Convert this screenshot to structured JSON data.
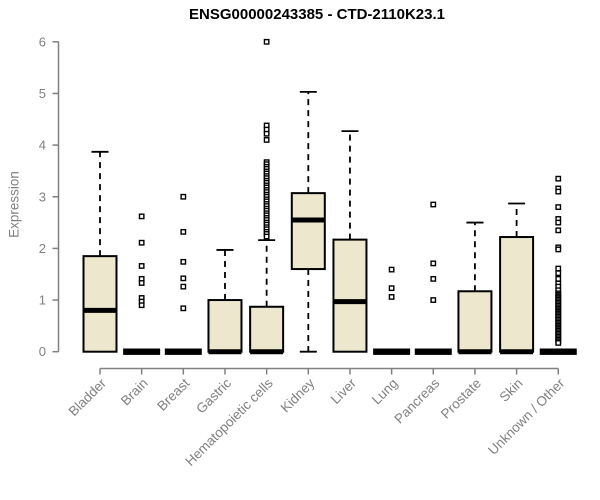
{
  "chart_data": {
    "type": "boxplot",
    "title": "ENSG00000243385 - CTD-2110K23.1",
    "xlabel": "",
    "ylabel": "Expression",
    "ylim": [
      0,
      6
    ],
    "yticks": [
      0,
      1,
      2,
      3,
      4,
      5,
      6
    ],
    "grid": false,
    "legend": null,
    "whisker_style": "dashed",
    "outlier_shape": "open-square",
    "categories": [
      "Bladder",
      "Brain",
      "Breast",
      "Gastric",
      "Hematopoietic cells",
      "Kidney",
      "Liver",
      "Lung",
      "Pancreas",
      "Prostate",
      "Skin",
      "Unknown / Other"
    ],
    "boxes": [
      {
        "category": "Bladder",
        "whisker_low": 0,
        "q1": 0,
        "median": 0.8,
        "q3": 1.85,
        "whisker_high": 3.87,
        "outliers": []
      },
      {
        "category": "Brain",
        "whisker_low": 0,
        "q1": 0,
        "median": 0,
        "q3": 0,
        "whisker_high": 0,
        "outliers": [
          2.62,
          2.11,
          1.66,
          1.41,
          1.33,
          1.04,
          0.97,
          0.9
        ]
      },
      {
        "category": "Breast",
        "whisker_low": 0,
        "q1": 0,
        "median": 0,
        "q3": 0,
        "whisker_high": 0,
        "outliers": [
          3.0,
          2.32,
          1.74,
          1.42,
          1.26,
          0.84
        ]
      },
      {
        "category": "Gastric",
        "whisker_low": 0,
        "q1": 0,
        "median": 0,
        "q3": 1.0,
        "whisker_high": 1.97,
        "outliers": []
      },
      {
        "category": "Hematopoietic cells",
        "whisker_low": 0,
        "q1": 0,
        "median": 0,
        "q3": 0.87,
        "whisker_high": 2.16,
        "outliers": [
          6.0,
          4.38,
          4.3,
          4.22,
          4.1,
          3.67,
          3.63,
          3.58,
          3.54,
          3.49,
          3.45,
          3.4,
          3.36,
          3.31,
          3.27,
          3.22,
          3.18,
          3.13,
          3.09,
          3.04,
          3.0,
          2.95,
          2.91,
          2.86,
          2.82,
          2.77,
          2.73,
          2.68,
          2.64,
          2.59,
          2.55,
          2.5,
          2.46,
          2.41,
          2.37,
          2.32,
          2.28,
          2.23
        ]
      },
      {
        "category": "Kidney",
        "whisker_low": 0,
        "q1": 1.6,
        "median": 2.55,
        "q3": 3.07,
        "whisker_high": 5.03,
        "outliers": []
      },
      {
        "category": "Liver",
        "whisker_low": 0,
        "q1": 0,
        "median": 0.97,
        "q3": 2.17,
        "whisker_high": 4.27,
        "outliers": []
      },
      {
        "category": "Lung",
        "whisker_low": 0,
        "q1": 0,
        "median": 0,
        "q3": 0,
        "whisker_high": 0,
        "outliers": [
          1.59,
          1.23,
          1.06
        ]
      },
      {
        "category": "Pancreas",
        "whisker_low": 0,
        "q1": 0,
        "median": 0,
        "q3": 0,
        "whisker_high": 0,
        "outliers": [
          2.85,
          1.71,
          1.41,
          1.0
        ]
      },
      {
        "category": "Prostate",
        "whisker_low": 0,
        "q1": 0,
        "median": 0,
        "q3": 1.17,
        "whisker_high": 2.5,
        "outliers": []
      },
      {
        "category": "Skin",
        "whisker_low": 0,
        "q1": 0,
        "median": 0,
        "q3": 2.22,
        "whisker_high": 2.87,
        "outliers": []
      },
      {
        "category": "Unknown / Other",
        "whisker_low": 0,
        "q1": 0,
        "median": 0,
        "q3": 0,
        "whisker_high": 0,
        "outliers": [
          3.35,
          3.16,
          3.1,
          2.8,
          2.57,
          2.5,
          2.35,
          2.02,
          1.98,
          1.61,
          1.52,
          1.41,
          1.32,
          1.26,
          1.19,
          1.13,
          1.1,
          1.07,
          1.04,
          1.01,
          0.98,
          0.95,
          0.92,
          0.89,
          0.86,
          0.83,
          0.8,
          0.77,
          0.74,
          0.71,
          0.68,
          0.65,
          0.62,
          0.59,
          0.56,
          0.53,
          0.5,
          0.47,
          0.44,
          0.41,
          0.38,
          0.35,
          0.32,
          0.29,
          0.26,
          0.23,
          0.2,
          0.17
        ]
      }
    ],
    "style": {
      "box_fill": "#EDE8CD",
      "box_stroke": "#000000",
      "median_color": "#000000",
      "axis_color": "#808080",
      "tick_label_color": "#808080",
      "title_color": "#000000",
      "background": "#FFFFFF"
    }
  }
}
